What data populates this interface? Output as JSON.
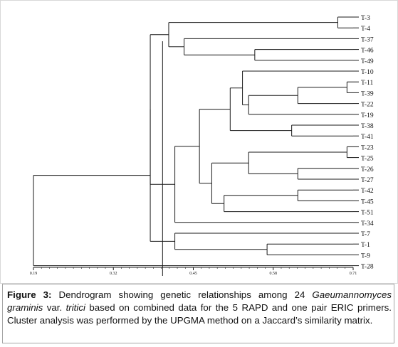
{
  "chart_data": {
    "type": "dendrogram",
    "axis_ticks": [
      "0.19",
      "0.32",
      "0.45",
      "0.58",
      "0.71"
    ],
    "axis_tick_values": [
      0.19,
      0.32,
      0.45,
      0.58,
      0.71
    ],
    "xlim": [
      0.19,
      0.71
    ],
    "cutoff_line": 0.4,
    "leaves": [
      "T-3",
      "T-4",
      "T-37",
      "T-46",
      "T-49",
      "T-10",
      "T-11",
      "T-39",
      "T-22",
      "T-19",
      "T-38",
      "T-41",
      "T-23",
      "T-25",
      "T-26",
      "T-27",
      "T-42",
      "T-45",
      "T-51",
      "T-34",
      "T-7",
      "T-1",
      "T-9",
      "T-28"
    ],
    "merges": [
      {
        "id": "A",
        "children": [
          "T-3",
          "T-4"
        ],
        "height": 0.685
      },
      {
        "id": "B",
        "children": [
          "T-46",
          "T-49"
        ],
        "height": 0.55
      },
      {
        "id": "C",
        "children": [
          "T-37",
          "B"
        ],
        "height": 0.435
      },
      {
        "id": "D",
        "children": [
          "A",
          "C"
        ],
        "height": 0.41
      },
      {
        "id": "E",
        "children": [
          "T-11",
          "T-39"
        ],
        "height": 0.7
      },
      {
        "id": "F",
        "children": [
          "E",
          "T-22"
        ],
        "height": 0.62
      },
      {
        "id": "G",
        "children": [
          "F",
          "T-19"
        ],
        "height": 0.54
      },
      {
        "id": "H",
        "children": [
          "T-10",
          "G"
        ],
        "height": 0.53
      },
      {
        "id": "I",
        "children": [
          "T-38",
          "T-41"
        ],
        "height": 0.61
      },
      {
        "id": "J",
        "children": [
          "H",
          "I"
        ],
        "height": 0.51
      },
      {
        "id": "K",
        "children": [
          "T-23",
          "T-25"
        ],
        "height": 0.7
      },
      {
        "id": "L",
        "children": [
          "T-26",
          "T-27"
        ],
        "height": 0.62
      },
      {
        "id": "M",
        "children": [
          "K",
          "L"
        ],
        "height": 0.54
      },
      {
        "id": "N",
        "children": [
          "T-42",
          "T-45"
        ],
        "height": 0.62
      },
      {
        "id": "O",
        "children": [
          "N",
          "T-51"
        ],
        "height": 0.5
      },
      {
        "id": "P",
        "children": [
          "M",
          "O"
        ],
        "height": 0.48
      },
      {
        "id": "Q",
        "children": [
          "J",
          "P"
        ],
        "height": 0.46
      },
      {
        "id": "R",
        "children": [
          "Q",
          "T-34"
        ],
        "height": 0.42
      },
      {
        "id": "S",
        "children": [
          "D",
          "R"
        ],
        "height": 0.38
      },
      {
        "id": "T",
        "children": [
          "T-1",
          "T-9"
        ],
        "height": 0.57
      },
      {
        "id": "U",
        "children": [
          "T-7",
          "T"
        ],
        "height": 0.42
      },
      {
        "id": "V",
        "children": [
          "S",
          "U"
        ],
        "height": 0.38
      },
      {
        "id": "W",
        "children": [
          "V",
          "T-28"
        ],
        "height": 0.19
      }
    ],
    "root": "W"
  },
  "caption": {
    "label": "Figure 3:",
    "text_1": " Dendrogram showing genetic relationships among 24 ",
    "italic_1": "Gaeumannomyces graminis",
    "text_2": " var. ",
    "italic_2": "tritici",
    "text_3": " based on combined data for the 5 RAPD and one pair ERIC primers. Cluster analysis was performed by the UPGMA method on a Jaccard’s similarity matrix."
  },
  "colors": {
    "lines": "#1a1a1a",
    "text": "#111111",
    "border": "#a5a5a5",
    "figure_border": "#cfcfcf"
  }
}
